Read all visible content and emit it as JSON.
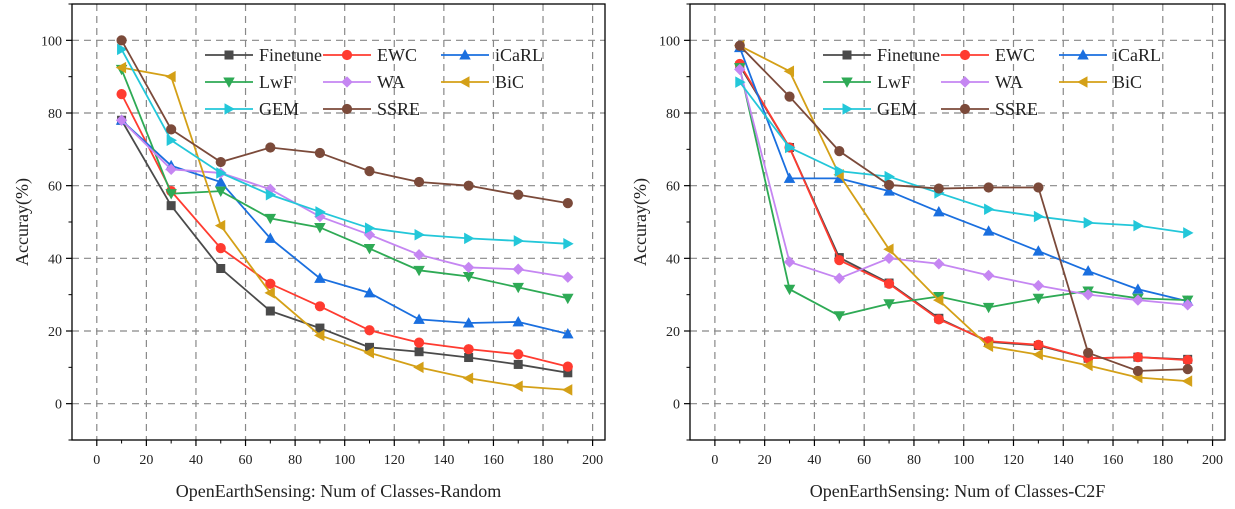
{
  "chart_data": [
    {
      "type": "line",
      "xlabel": "OpenEarthSensing: Num of Classes-Random",
      "ylabel": "Accuray(%)",
      "xlim": [
        -10,
        205
      ],
      "ylim": [
        -10,
        110
      ],
      "xticks": [
        0,
        20,
        40,
        60,
        80,
        100,
        120,
        140,
        160,
        180,
        200
      ],
      "yticks": [
        0,
        20,
        40,
        60,
        80,
        100
      ],
      "grid": true,
      "legend_position": "top-right",
      "x": [
        10,
        30,
        50,
        70,
        90,
        110,
        130,
        150,
        170,
        190
      ],
      "series": [
        {
          "name": "Finetune",
          "color": "#4a4a4a",
          "marker": "square",
          "values": [
            78,
            54.5,
            37.2,
            25.5,
            20.8,
            15.5,
            14.3,
            12.7,
            10.8,
            8.5
          ]
        },
        {
          "name": "EWC",
          "color": "#ff3b30",
          "marker": "circle",
          "values": [
            85.2,
            58.5,
            42.8,
            33,
            26.8,
            20.2,
            16.8,
            15,
            13.6,
            10.2
          ]
        },
        {
          "name": "iCaRL",
          "color": "#1a6fdf",
          "marker": "triangle-up",
          "values": [
            78,
            65.5,
            61,
            45.5,
            34.5,
            30.5,
            23.2,
            22.2,
            22.5,
            19.2
          ]
        },
        {
          "name": "LwF",
          "color": "#2eaa55",
          "marker": "triangle-down",
          "values": [
            92,
            57.8,
            58.5,
            51,
            48.5,
            42.7,
            36.7,
            35,
            32,
            29
          ]
        },
        {
          "name": "WA",
          "color": "#c586f2",
          "marker": "diamond",
          "values": [
            78,
            64.5,
            63.5,
            59,
            51.5,
            46.5,
            41,
            37.5,
            37,
            34.8
          ]
        },
        {
          "name": "BiC",
          "color": "#d4a017",
          "marker": "triangle-left",
          "values": [
            92.5,
            90,
            49,
            30.5,
            18.8,
            14,
            10,
            7,
            4.8,
            3.8
          ]
        },
        {
          "name": "GEM",
          "color": "#23c7d9",
          "marker": "triangle-right",
          "values": [
            97.5,
            72.5,
            63.5,
            57.5,
            52.8,
            48.3,
            46.5,
            45.5,
            44.8,
            44
          ]
        },
        {
          "name": "SSRE",
          "color": "#7b4a3a",
          "marker": "circle",
          "values": [
            100,
            75.5,
            66.5,
            70.5,
            69,
            64,
            61,
            60,
            57.5,
            55.2
          ]
        }
      ]
    },
    {
      "type": "line",
      "xlabel": "OpenEarthSensing: Num of Classes-C2F",
      "ylabel": "Accuray(%)",
      "xlim": [
        -10,
        205
      ],
      "ylim": [
        -10,
        110
      ],
      "xticks": [
        0,
        20,
        40,
        60,
        80,
        100,
        120,
        140,
        160,
        180,
        200
      ],
      "yticks": [
        0,
        20,
        40,
        60,
        80,
        100
      ],
      "grid": true,
      "legend_position": "top-right",
      "x": [
        10,
        30,
        50,
        70,
        90,
        110,
        130,
        150,
        170,
        190
      ],
      "series": [
        {
          "name": "Finetune",
          "color": "#4a4a4a",
          "marker": "square",
          "values": [
            93,
            70.5,
            40.2,
            33.2,
            23.5,
            17,
            16,
            12.5,
            12.8,
            12.2
          ]
        },
        {
          "name": "EWC",
          "color": "#ff3b30",
          "marker": "circle",
          "values": [
            93.5,
            70.5,
            39.5,
            33,
            23.2,
            17.2,
            16.2,
            12.5,
            12.8,
            12
          ]
        },
        {
          "name": "iCaRL",
          "color": "#1a6fdf",
          "marker": "triangle-up",
          "values": [
            98,
            62,
            62,
            58.5,
            52.8,
            47.5,
            42,
            36.5,
            31.5,
            28.2
          ]
        },
        {
          "name": "LwF",
          "color": "#2eaa55",
          "marker": "triangle-down",
          "values": [
            92.5,
            31.5,
            24.2,
            27.5,
            29.5,
            26.5,
            29,
            31,
            29,
            28.5
          ]
        },
        {
          "name": "WA",
          "color": "#c586f2",
          "marker": "diamond",
          "values": [
            92,
            39,
            34.5,
            40,
            38.5,
            35.3,
            32.5,
            30,
            28.5,
            27.2
          ]
        },
        {
          "name": "BiC",
          "color": "#d4a017",
          "marker": "triangle-left",
          "values": [
            98.5,
            91.5,
            63,
            42.5,
            28.5,
            15.8,
            13.5,
            10.5,
            7.2,
            6.2
          ]
        },
        {
          "name": "GEM",
          "color": "#23c7d9",
          "marker": "triangle-right",
          "values": [
            88.5,
            70.5,
            64,
            62.5,
            58,
            53.5,
            51.5,
            49.8,
            49,
            47
          ]
        },
        {
          "name": "SSRE",
          "color": "#7b4a3a",
          "marker": "circle",
          "values": [
            98.5,
            84.5,
            69.5,
            60.2,
            59.2,
            59.5,
            59.5,
            14,
            9,
            9.5
          ]
        }
      ]
    }
  ]
}
